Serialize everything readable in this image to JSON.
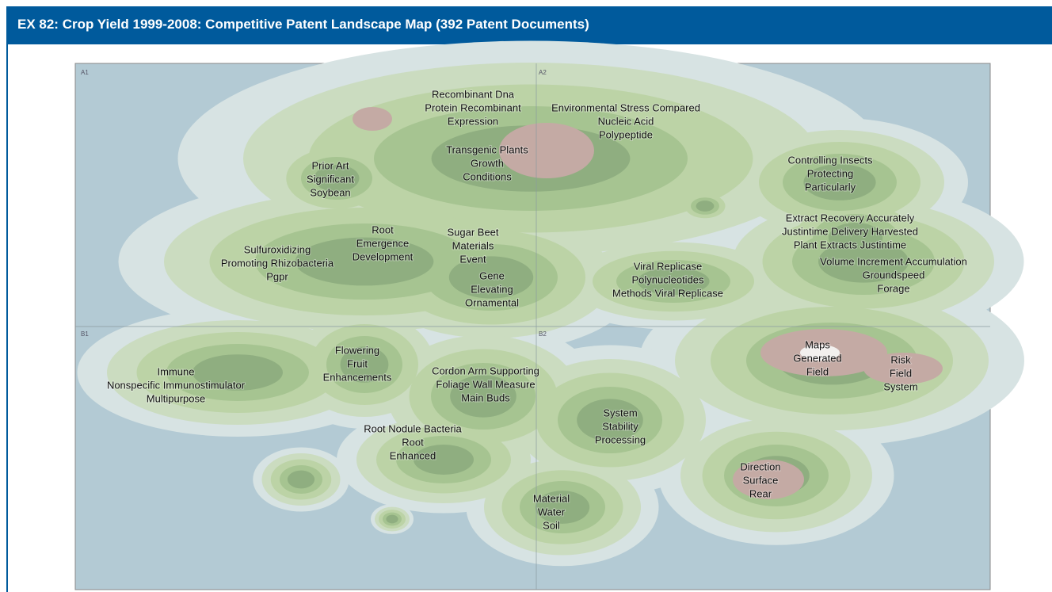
{
  "header": {
    "title": "EX 82: Crop Yield 1999-2008: Competitive Patent Landscape Map (392 Patent Documents)"
  },
  "map": {
    "grid_labels": [
      "A1",
      "A2",
      "B1",
      "B2"
    ],
    "clusters": [
      {
        "lines": [
          "Recombinant Dna",
          "Protein Recombinant",
          "Expression"
        ]
      },
      {
        "lines": [
          "Environmental Stress Compared",
          "Nucleic Acid",
          "Polypeptide"
        ]
      },
      {
        "lines": [
          "Transgenic Plants",
          "Growth",
          "Conditions"
        ]
      },
      {
        "lines": [
          "Prior Art",
          "Significant",
          "Soybean"
        ]
      },
      {
        "lines": [
          "Controlling Insects",
          "Protecting",
          "Particularly"
        ]
      },
      {
        "lines": [
          "Extract Recovery Accurately",
          "Justintime Delivery Harvested",
          "Plant Extracts Justintime"
        ]
      },
      {
        "lines": [
          "Volume Increment Accumulation",
          "Groundspeed",
          "Forage"
        ]
      },
      {
        "lines": [
          "Root",
          "Emergence",
          "Development"
        ]
      },
      {
        "lines": [
          "Sugar Beet",
          "Materials",
          "Event"
        ]
      },
      {
        "lines": [
          "Sulfuroxidizing",
          "Promoting Rhizobacteria",
          "Pgpr"
        ]
      },
      {
        "lines": [
          "Gene",
          "Elevating",
          "Ornamental"
        ]
      },
      {
        "lines": [
          "Viral Replicase",
          "Polynucleotides",
          "Methods Viral Replicase"
        ]
      },
      {
        "lines": [
          "Maps",
          "Generated",
          "Field"
        ]
      },
      {
        "lines": [
          "Risk",
          "Field",
          "System"
        ]
      },
      {
        "lines": [
          "Flowering",
          "Fruit",
          "Enhancements"
        ]
      },
      {
        "lines": [
          "Immune",
          "Nonspecific Immunostimulator",
          "Multipurpose"
        ]
      },
      {
        "lines": [
          "Cordon Arm Supporting",
          "Foliage Wall Measure",
          "Main Buds"
        ]
      },
      {
        "lines": [
          "System",
          "Stability",
          "Processing"
        ]
      },
      {
        "lines": [
          "Root Nodule Bacteria",
          "Root",
          "Enhanced"
        ]
      },
      {
        "lines": [
          "Direction",
          "Surface",
          "Rear"
        ]
      },
      {
        "lines": [
          "Material",
          "Water",
          "Soil"
        ]
      }
    ]
  }
}
